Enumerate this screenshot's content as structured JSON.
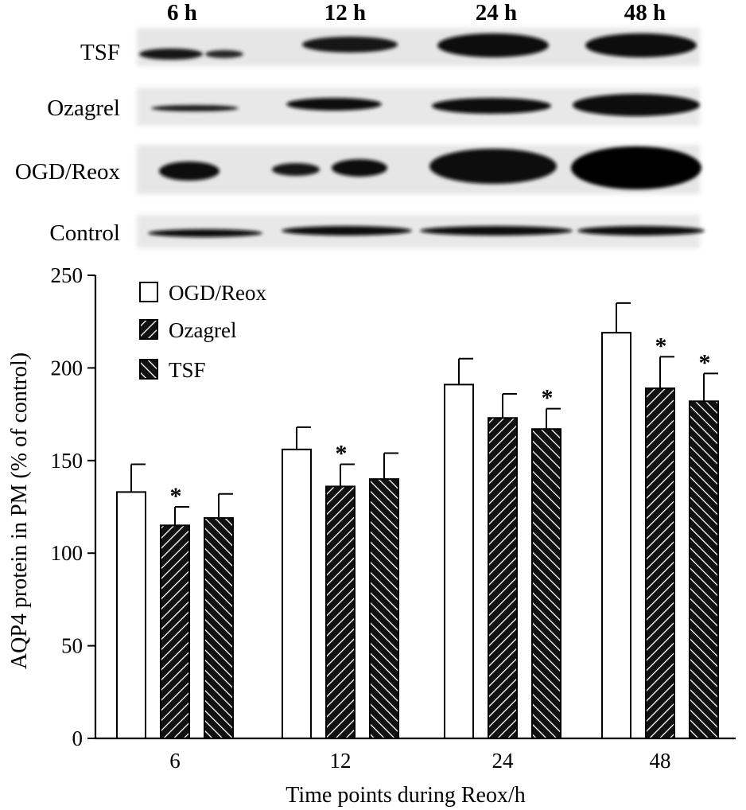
{
  "blot": {
    "time_labels": [
      "6 h",
      "12 h",
      "24 h",
      "48 h"
    ],
    "row_labels": [
      "TSF",
      "Ozagrel",
      "OGD/Reox",
      "Control"
    ]
  },
  "chart_data": {
    "type": "bar",
    "title": "",
    "xlabel": "Time points during Reox/h",
    "ylabel": "AQP4 protein in PM (% of control)",
    "categories": [
      "6",
      "12",
      "24",
      "48"
    ],
    "ylim": [
      0,
      250
    ],
    "yticks": [
      "0",
      "50",
      "100",
      "150",
      "200",
      "250"
    ],
    "legend_position": "top-left",
    "significance_marker": "*",
    "series": [
      {
        "name": "OGD/Reox",
        "pattern": "open",
        "values": [
          133,
          156,
          191,
          219
        ],
        "errors": [
          15,
          12,
          14,
          16
        ],
        "significant": [
          false,
          false,
          false,
          false
        ]
      },
      {
        "name": "Ozagrel",
        "pattern": "back-hatch",
        "values": [
          115,
          136,
          173,
          189
        ],
        "errors": [
          10,
          12,
          13,
          17
        ],
        "significant": [
          true,
          true,
          false,
          true
        ]
      },
      {
        "name": "TSF",
        "pattern": "forward-hatch",
        "values": [
          119,
          140,
          167,
          182
        ],
        "errors": [
          13,
          14,
          11,
          15
        ],
        "significant": [
          false,
          false,
          true,
          true
        ]
      }
    ]
  }
}
